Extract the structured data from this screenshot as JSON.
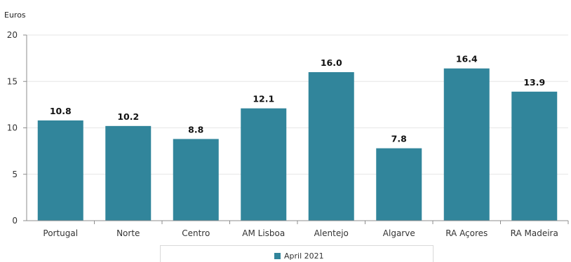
{
  "chart_data": {
    "type": "bar",
    "ylabel": "Euros",
    "ylim": [
      0,
      20
    ],
    "yticks": [
      0,
      5,
      10,
      15,
      20
    ],
    "grid": true,
    "legend_position": "bottom",
    "categories": [
      "Portugal",
      "Norte",
      "Centro",
      "AM Lisboa",
      "Alentejo",
      "Algarve",
      "RA Açores",
      "RA Madeira"
    ],
    "series": [
      {
        "name": "April 2021",
        "values": [
          10.8,
          10.2,
          8.8,
          12.1,
          16.0,
          7.8,
          16.4,
          13.9
        ],
        "data_labels": [
          "10.8",
          "10.2",
          "8.8",
          "12.1",
          "16.0",
          "7.8",
          "16.4",
          "13.9"
        ],
        "color": "#31859b"
      }
    ]
  }
}
